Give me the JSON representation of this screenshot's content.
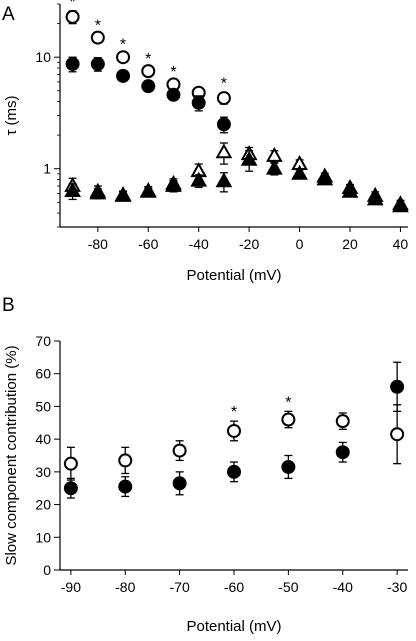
{
  "chart_data": [
    {
      "panel": "A",
      "type": "scatter",
      "title": "",
      "xlabel": "Potential (mV)",
      "ylabel": "τ (ms)",
      "y_scale": "log",
      "xlim": [
        -95,
        43
      ],
      "ylim": [
        0.3,
        30
      ],
      "x_ticks": [
        -80,
        -60,
        -40,
        -20,
        0,
        20,
        40
      ],
      "x_tick_labels": [
        "-80",
        "-60",
        "-40",
        "-20",
        "0",
        "20",
        "40"
      ],
      "y_ticks": [
        1,
        10
      ],
      "y_tick_labels": [
        "1",
        "10"
      ],
      "grid": false,
      "legend": "none",
      "marker_color": "#000000",
      "series": [
        {
          "marker": "open-circle",
          "x": [
            -90,
            -80,
            -70,
            -60,
            -50,
            -40,
            -30
          ],
          "y": [
            23,
            15,
            10,
            7.5,
            5.7,
            4.8,
            4.3
          ],
          "err": [
            3,
            1,
            0.8,
            0.5,
            0.4,
            0.4,
            0.5
          ]
        },
        {
          "marker": "filled-circle",
          "x": [
            -90,
            -80,
            -70,
            -60,
            -50,
            -40,
            -30
          ],
          "y": [
            8.7,
            8.7,
            6.8,
            5.5,
            4.6,
            3.9,
            2.5
          ],
          "err": [
            1.3,
            1.2,
            0.4,
            0.3,
            0.3,
            0.6,
            0.4
          ]
        },
        {
          "marker": "open-triangle",
          "x": [
            -90,
            -80,
            -70,
            -60,
            -50,
            -40,
            -30,
            -20,
            -10,
            0,
            10,
            20,
            30,
            40
          ],
          "y": [
            0.7,
            0.62,
            0.58,
            0.63,
            0.73,
            0.95,
            1.4,
            1.35,
            1.3,
            1.1,
            0.85,
            0.67,
            0.57,
            0.48
          ],
          "err": [
            0.12,
            0.08,
            0.05,
            0.06,
            0.08,
            0.15,
            0.3,
            0.2,
            0.15,
            0.1,
            0.06,
            0.05,
            0.05,
            0.04
          ]
        },
        {
          "marker": "filled-triangle",
          "x": [
            -90,
            -80,
            -70,
            -60,
            -50,
            -40,
            -30,
            -20,
            -10,
            0,
            10,
            20,
            30,
            40
          ],
          "y": [
            0.63,
            0.6,
            0.57,
            0.62,
            0.7,
            0.78,
            0.77,
            1.2,
            1.0,
            0.9,
            0.8,
            0.62,
            0.53,
            0.46
          ],
          "err": [
            0.1,
            0.06,
            0.05,
            0.05,
            0.08,
            0.1,
            0.15,
            0.25,
            0.12,
            0.08,
            0.06,
            0.05,
            0.05,
            0.04
          ]
        }
      ],
      "annotations": [
        {
          "text": "*",
          "x": -90
        },
        {
          "text": "*",
          "x": -80
        },
        {
          "text": "*",
          "x": -70
        },
        {
          "text": "*",
          "x": -60
        },
        {
          "text": "*",
          "x": -50
        },
        {
          "text": "*",
          "x": -30
        }
      ]
    },
    {
      "panel": "B",
      "type": "scatter",
      "title": "",
      "xlabel": "Potential (mV)",
      "ylabel": "Slow component contribution (%)",
      "xlim": [
        -92,
        -28
      ],
      "ylim": [
        0,
        70
      ],
      "x_ticks": [
        -90,
        -80,
        -70,
        -60,
        -50,
        -40,
        -30
      ],
      "x_tick_labels": [
        "-90",
        "-80",
        "-70",
        "-60",
        "-50",
        "-40",
        "-30"
      ],
      "y_ticks": [
        0,
        10,
        20,
        30,
        40,
        50,
        60,
        70
      ],
      "y_tick_labels": [
        "0",
        "10",
        "20",
        "30",
        "40",
        "50",
        "60",
        "70"
      ],
      "grid": false,
      "legend": "none",
      "marker_color": "#000000",
      "series": [
        {
          "marker": "open-circle",
          "x": [
            -90,
            -80,
            -70,
            -60,
            -50,
            -40,
            -30
          ],
          "y": [
            32.5,
            33.5,
            36.5,
            42.5,
            46,
            45.5,
            41.5
          ],
          "err": [
            5,
            4,
            3,
            3,
            2.5,
            2.5,
            9
          ]
        },
        {
          "marker": "filled-circle",
          "x": [
            -90,
            -80,
            -70,
            -60,
            -50,
            -40,
            -30
          ],
          "y": [
            25,
            25.5,
            26.5,
            30,
            31.5,
            36,
            56
          ],
          "err": [
            3,
            3,
            3.5,
            3,
            3.5,
            3,
            7.5
          ]
        }
      ],
      "annotations": [
        {
          "text": "*",
          "x": -60
        },
        {
          "text": "*",
          "x": -50
        }
      ]
    }
  ]
}
